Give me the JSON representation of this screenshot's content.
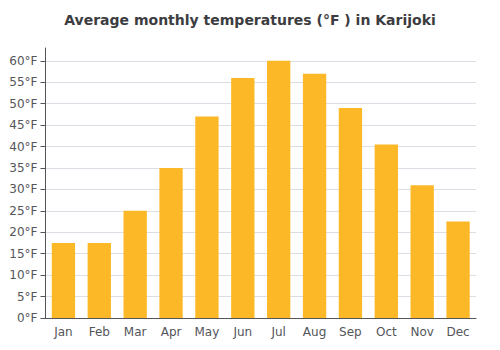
{
  "chart_data": {
    "type": "bar",
    "title": "Average monthly temperatures (°F ) in Karijoki",
    "categories": [
      "Jan",
      "Feb",
      "Mar",
      "Apr",
      "May",
      "Jun",
      "Jul",
      "Aug",
      "Sep",
      "Oct",
      "Nov",
      "Dec"
    ],
    "values": [
      17.5,
      17.5,
      25.0,
      35.0,
      47.0,
      56.0,
      60.0,
      57.0,
      49.0,
      40.5,
      31.0,
      22.5
    ],
    "color": "#FDB827",
    "ylim": [
      0,
      63
    ],
    "yticks": [
      {
        "value": 0,
        "label": "0°F"
      },
      {
        "value": 5,
        "label": "5°F"
      },
      {
        "value": 10,
        "label": "10°F"
      },
      {
        "value": 15,
        "label": "15°F"
      },
      {
        "value": 20,
        "label": "20°F"
      },
      {
        "value": 25,
        "label": "25°F"
      },
      {
        "value": 30,
        "label": "30°F"
      },
      {
        "value": 35,
        "label": "35°F"
      },
      {
        "value": 40,
        "label": "40°F"
      },
      {
        "value": 45,
        "label": "45°F"
      },
      {
        "value": 50,
        "label": "50°F"
      },
      {
        "value": 55,
        "label": "55°F"
      },
      {
        "value": 60,
        "label": "60°F"
      }
    ],
    "grid": true
  }
}
